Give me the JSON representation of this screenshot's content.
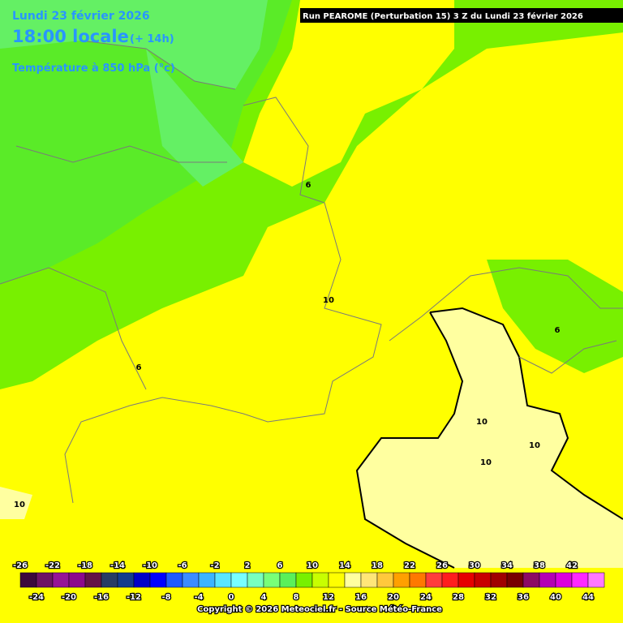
{
  "header": {
    "date": "Lundi 23 février 2026",
    "time": "18:00 locale",
    "lead": "(+ 14h)",
    "parameter": "Température à 850 hPa (°c)",
    "run": "Run PEAROME (Perturbation 15) 3 Z du Lundi 23 février 2026"
  },
  "contour_labels": [
    6,
    10,
    6,
    6,
    10,
    10,
    10,
    10
  ],
  "legend": {
    "top_labels": [
      -26,
      -22,
      -18,
      -14,
      -10,
      -6,
      -2,
      2,
      6,
      10,
      14,
      18,
      22,
      26,
      30,
      34,
      38,
      42
    ],
    "bottom_labels": [
      -24,
      -20,
      -16,
      -12,
      -8,
      -4,
      0,
      4,
      8,
      12,
      16,
      20,
      24,
      28,
      32,
      36,
      40,
      44
    ],
    "colors": [
      "#3c0a3c",
      "#6e1464",
      "#961496",
      "#8c0a8c",
      "#641446",
      "#283c64",
      "#143c8c",
      "#0000c8",
      "#0000ff",
      "#1e5aff",
      "#3c8cff",
      "#3cb4ff",
      "#5ae6ff",
      "#78ffff",
      "#78ffbe",
      "#78ff78",
      "#5af05a",
      "#78f000",
      "#c8ff00",
      "#ffff00",
      "#ffffa0",
      "#ffe678",
      "#ffc83c",
      "#ffa000",
      "#ff7800",
      "#ff3c3c",
      "#ff1e1e",
      "#e60000",
      "#c80000",
      "#a00000",
      "#780000",
      "#8c0a64",
      "#b400b4",
      "#dc00dc",
      "#ff28ff",
      "#ff78ff"
    ]
  },
  "footer": {
    "copyright": "Copyright © 2026 Meteociel.fr - Source Météo-France"
  }
}
